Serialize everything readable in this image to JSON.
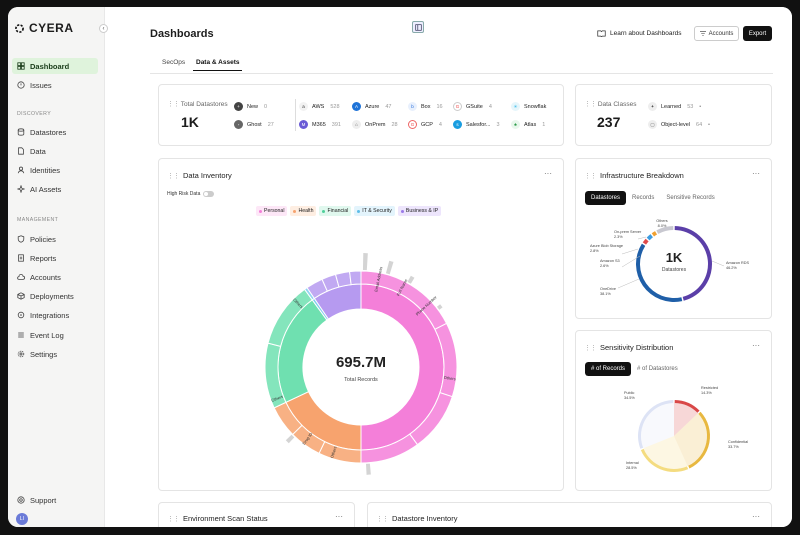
{
  "brand": {
    "name": "CYERA"
  },
  "sidebar": {
    "items": [
      {
        "label": "Dashboard"
      },
      {
        "label": "Issues"
      }
    ],
    "discovery_label": "DISCOVERY",
    "discovery": [
      {
        "label": "Datastores"
      },
      {
        "label": "Data"
      },
      {
        "label": "Identities"
      },
      {
        "label": "AI Assets"
      }
    ],
    "management_label": "MANAGEMENT",
    "management": [
      {
        "label": "Policies"
      },
      {
        "label": "Reports"
      },
      {
        "label": "Accounts"
      },
      {
        "label": "Deployments"
      },
      {
        "label": "Integrations"
      },
      {
        "label": "Event Log"
      },
      {
        "label": "Settings"
      }
    ],
    "support": "Support",
    "user_initials": "LI"
  },
  "header": {
    "title": "Dashboards",
    "learn": "Learn about Dashboards",
    "accounts": "Accounts",
    "export": "Export"
  },
  "tabs": [
    {
      "label": "SecOps"
    },
    {
      "label": "Data & Assets"
    }
  ],
  "datastores": {
    "label": "Total Datastores",
    "total": "1K",
    "items": [
      {
        "name": "New",
        "count": "0"
      },
      {
        "name": "Ghost",
        "count": "27"
      },
      {
        "name": "AWS",
        "count": "528"
      },
      {
        "name": "M365",
        "count": "391"
      },
      {
        "name": "Azure",
        "count": "47"
      },
      {
        "name": "OnPrem",
        "count": "28"
      },
      {
        "name": "Box",
        "count": "16"
      },
      {
        "name": "GCP",
        "count": "4"
      },
      {
        "name": "GSuite",
        "count": "4"
      },
      {
        "name": "Salesfor...",
        "count": "3"
      },
      {
        "name": "Snowflak",
        "count": ""
      },
      {
        "name": "Atlas",
        "count": "1"
      }
    ]
  },
  "data_classes": {
    "label": "Data Classes",
    "total": "237",
    "items": [
      {
        "name": "Learned",
        "count": "53"
      },
      {
        "name": "Object-level",
        "count": "64"
      }
    ]
  },
  "inventory": {
    "title": "Data Inventory",
    "toggle_label": "High Risk Data",
    "legend": [
      {
        "name": "Personal",
        "color": "#f47fd9"
      },
      {
        "name": "Health",
        "color": "#f7a36e"
      },
      {
        "name": "Financial",
        "color": "#6fe0b0"
      },
      {
        "name": "IT & Security",
        "color": "#7fcdf0"
      },
      {
        "name": "Business & IP",
        "color": "#b69af0"
      }
    ],
    "total": "695.7M",
    "total_label": "Total Records",
    "labels": [
      "Email Address",
      "Full Name",
      "Phone Number",
      "Others",
      "Others",
      "Others",
      "Others",
      "Drug ID"
    ]
  },
  "chart_data": [
    {
      "type": "pie",
      "title": "Data Inventory",
      "categories": [
        "Personal",
        "Health",
        "Financial",
        "IT & Security",
        "Business & IP"
      ],
      "values": [
        50,
        18,
        22,
        0.5,
        9.5
      ]
    },
    {
      "type": "pie",
      "title": "Infrastructure Breakdown",
      "categories": [
        "Amazon RDS",
        "OneDrive",
        "Amazon S3",
        "Azure Blob Storage",
        "On-prem Server",
        "Others"
      ],
      "values": [
        46.2,
        38.1,
        2.6,
        2.8,
        2.3,
        8.0
      ]
    },
    {
      "type": "pie",
      "title": "Sensitivity Distribution",
      "categories": [
        "Restricted",
        "Confidential",
        "Internal",
        "Public"
      ],
      "values": [
        14.3,
        33.7,
        28.5,
        34.5
      ]
    }
  ],
  "infra": {
    "title": "Infrastructure Breakdown",
    "tabs": [
      "Datastores",
      "Records",
      "Sensitive Records"
    ],
    "total": "1K",
    "total_label": "Datastores",
    "labels": [
      {
        "name": "Others",
        "pct": "8.0%"
      },
      {
        "name": "On-prem Server",
        "pct": "2.3%"
      },
      {
        "name": "Azure Blob Storage",
        "pct": "2.8%"
      },
      {
        "name": "Amazon S3",
        "pct": "2.6%"
      },
      {
        "name": "OneDrive",
        "pct": "38.1%"
      },
      {
        "name": "Amazon RDS",
        "pct": "46.2%"
      }
    ],
    "colors": [
      "#5b3fa8",
      "#1f5fa8",
      "#e04b4b",
      "#3d9be0",
      "#f0a030",
      "#c8c8d0"
    ]
  },
  "sensitivity": {
    "title": "Sensitivity Distribution",
    "tabs": [
      "# of Records",
      "# of Datastores"
    ],
    "labels": [
      {
        "name": "Restricted",
        "pct": "14.3%"
      },
      {
        "name": "Confidential",
        "pct": "33.7%"
      },
      {
        "name": "Internal",
        "pct": "28.5%"
      },
      {
        "name": "Public",
        "pct": "34.5%"
      }
    ],
    "colors": [
      "#d94848",
      "#e8b840",
      "#f4dc80",
      "#dde3f5"
    ]
  },
  "bottom": {
    "scan": "Environment Scan Status",
    "inventory": "Datastore Inventory"
  }
}
